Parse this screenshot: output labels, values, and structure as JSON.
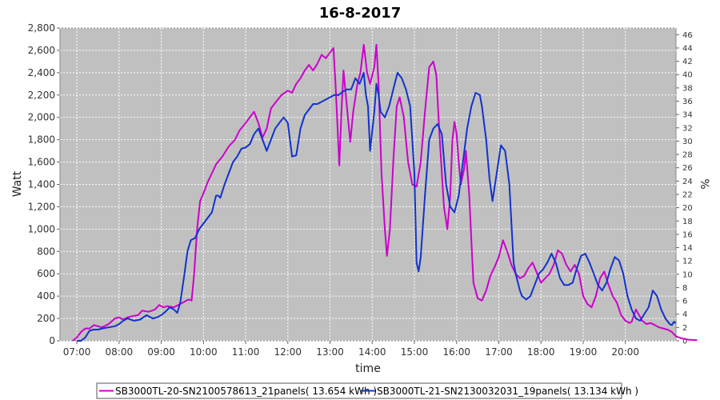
{
  "chart_data": {
    "type": "line",
    "title": "16-8-2017",
    "xlabel": "time",
    "ylabel": "Watt",
    "y2label": "%",
    "xlim": [
      6.6,
      21.2
    ],
    "ylim": [
      0,
      2800
    ],
    "y2lim": [
      0,
      47
    ],
    "x_ticks": [
      "07:00",
      "08:00",
      "09:00",
      "10:00",
      "11:00",
      "12:00",
      "13:00",
      "14:00",
      "15:00",
      "16:00",
      "17:00",
      "18:00",
      "19:00",
      "20:00"
    ],
    "y_ticks": [
      "0",
      "200",
      "400",
      "600",
      "800",
      "1,000",
      "1,200",
      "1,400",
      "1,600",
      "1,800",
      "2,000",
      "2,200",
      "2,400",
      "2,600",
      "2,800"
    ],
    "y2_ticks": [
      "0",
      "2",
      "4",
      "6",
      "8",
      "10",
      "12",
      "14",
      "16",
      "18",
      "20",
      "22",
      "24",
      "26",
      "28",
      "30",
      "32",
      "34",
      "36",
      "38",
      "40",
      "42",
      "44",
      "46"
    ],
    "grid": true,
    "legend_position": "bottom",
    "series": [
      {
        "name": "SB3000TL-20-SN2100578613_21panels( 13.654 kWh )",
        "color": "#cc00cc",
        "points": [
          [
            6.9,
            0
          ],
          [
            7.0,
            30
          ],
          [
            7.1,
            80
          ],
          [
            7.2,
            110
          ],
          [
            7.3,
            110
          ],
          [
            7.4,
            140
          ],
          [
            7.5,
            130
          ],
          [
            7.6,
            120
          ],
          [
            7.75,
            150
          ],
          [
            7.9,
            200
          ],
          [
            8.0,
            210
          ],
          [
            8.1,
            190
          ],
          [
            8.2,
            210
          ],
          [
            8.3,
            220
          ],
          [
            8.45,
            230
          ],
          [
            8.55,
            270
          ],
          [
            8.7,
            260
          ],
          [
            8.85,
            280
          ],
          [
            8.95,
            320
          ],
          [
            9.05,
            300
          ],
          [
            9.15,
            310
          ],
          [
            9.3,
            300
          ],
          [
            9.45,
            330
          ],
          [
            9.55,
            350
          ],
          [
            9.65,
            370
          ],
          [
            9.72,
            360
          ],
          [
            9.78,
            600
          ],
          [
            9.85,
            1000
          ],
          [
            9.92,
            1250
          ],
          [
            10.0,
            1320
          ],
          [
            10.1,
            1420
          ],
          [
            10.2,
            1500
          ],
          [
            10.3,
            1580
          ],
          [
            10.45,
            1650
          ],
          [
            10.6,
            1740
          ],
          [
            10.75,
            1800
          ],
          [
            10.85,
            1880
          ],
          [
            11.0,
            1950
          ],
          [
            11.1,
            2000
          ],
          [
            11.2,
            2050
          ],
          [
            11.3,
            1950
          ],
          [
            11.4,
            1820
          ],
          [
            11.5,
            1900
          ],
          [
            11.6,
            2080
          ],
          [
            11.7,
            2130
          ],
          [
            11.85,
            2200
          ],
          [
            12.0,
            2240
          ],
          [
            12.1,
            2220
          ],
          [
            12.2,
            2300
          ],
          [
            12.3,
            2350
          ],
          [
            12.4,
            2420
          ],
          [
            12.5,
            2470
          ],
          [
            12.6,
            2420
          ],
          [
            12.7,
            2480
          ],
          [
            12.8,
            2560
          ],
          [
            12.9,
            2530
          ],
          [
            13.0,
            2580
          ],
          [
            13.08,
            2620
          ],
          [
            13.13,
            2300
          ],
          [
            13.18,
            1900
          ],
          [
            13.22,
            1570
          ],
          [
            13.27,
            2050
          ],
          [
            13.32,
            2420
          ],
          [
            13.4,
            2100
          ],
          [
            13.48,
            1780
          ],
          [
            13.55,
            2050
          ],
          [
            13.65,
            2300
          ],
          [
            13.72,
            2400
          ],
          [
            13.8,
            2650
          ],
          [
            13.88,
            2400
          ],
          [
            13.95,
            2300
          ],
          [
            14.05,
            2450
          ],
          [
            14.1,
            2650
          ],
          [
            14.15,
            2300
          ],
          [
            14.22,
            1500
          ],
          [
            14.3,
            1000
          ],
          [
            14.35,
            760
          ],
          [
            14.42,
            1000
          ],
          [
            14.5,
            1600
          ],
          [
            14.58,
            2100
          ],
          [
            14.65,
            2180
          ],
          [
            14.75,
            2000
          ],
          [
            14.85,
            1600
          ],
          [
            14.95,
            1400
          ],
          [
            15.05,
            1380
          ],
          [
            15.15,
            1600
          ],
          [
            15.25,
            2050
          ],
          [
            15.35,
            2450
          ],
          [
            15.45,
            2500
          ],
          [
            15.52,
            2380
          ],
          [
            15.6,
            1800
          ],
          [
            15.7,
            1200
          ],
          [
            15.78,
            1000
          ],
          [
            15.85,
            1300
          ],
          [
            15.9,
            1800
          ],
          [
            15.95,
            1960
          ],
          [
            16.0,
            1850
          ],
          [
            16.05,
            1600
          ],
          [
            16.1,
            1400
          ],
          [
            16.18,
            1540
          ],
          [
            16.22,
            1700
          ],
          [
            16.3,
            1300
          ],
          [
            16.35,
            900
          ],
          [
            16.4,
            520
          ],
          [
            16.5,
            380
          ],
          [
            16.6,
            360
          ],
          [
            16.7,
            450
          ],
          [
            16.8,
            580
          ],
          [
            16.9,
            660
          ],
          [
            17.0,
            750
          ],
          [
            17.1,
            900
          ],
          [
            17.2,
            800
          ],
          [
            17.3,
            680
          ],
          [
            17.4,
            600
          ],
          [
            17.5,
            560
          ],
          [
            17.6,
            580
          ],
          [
            17.7,
            650
          ],
          [
            17.8,
            700
          ],
          [
            17.9,
            610
          ],
          [
            18.0,
            520
          ],
          [
            18.1,
            560
          ],
          [
            18.2,
            600
          ],
          [
            18.3,
            680
          ],
          [
            18.4,
            810
          ],
          [
            18.5,
            780
          ],
          [
            18.6,
            680
          ],
          [
            18.7,
            620
          ],
          [
            18.8,
            680
          ],
          [
            18.9,
            600
          ],
          [
            19.0,
            400
          ],
          [
            19.1,
            330
          ],
          [
            19.2,
            300
          ],
          [
            19.3,
            400
          ],
          [
            19.4,
            560
          ],
          [
            19.5,
            620
          ],
          [
            19.6,
            500
          ],
          [
            19.7,
            400
          ],
          [
            19.8,
            340
          ],
          [
            19.9,
            230
          ],
          [
            20.0,
            180
          ],
          [
            20.1,
            160
          ],
          [
            20.15,
            170
          ],
          [
            20.25,
            280
          ],
          [
            20.4,
            180
          ],
          [
            20.5,
            150
          ],
          [
            20.6,
            160
          ],
          [
            20.7,
            140
          ],
          [
            20.8,
            120
          ],
          [
            20.9,
            110
          ],
          [
            21.0,
            100
          ],
          [
            21.1,
            80
          ],
          [
            21.2,
            40
          ],
          [
            21.35,
            20
          ],
          [
            21.5,
            10
          ],
          [
            21.7,
            5
          ]
        ]
      },
      {
        "name": "SB3000TL-21-SN2130032031_19panels( 13.134 kWh )",
        "color": "#1133cc",
        "points": [
          [
            7.0,
            0
          ],
          [
            7.1,
            0
          ],
          [
            7.2,
            30
          ],
          [
            7.3,
            90
          ],
          [
            7.4,
            100
          ],
          [
            7.5,
            100
          ],
          [
            7.6,
            110
          ],
          [
            7.75,
            120
          ],
          [
            7.9,
            130
          ],
          [
            8.0,
            150
          ],
          [
            8.1,
            180
          ],
          [
            8.2,
            200
          ],
          [
            8.35,
            180
          ],
          [
            8.5,
            190
          ],
          [
            8.65,
            230
          ],
          [
            8.8,
            200
          ],
          [
            8.9,
            210
          ],
          [
            9.0,
            230
          ],
          [
            9.1,
            260
          ],
          [
            9.2,
            300
          ],
          [
            9.3,
            280
          ],
          [
            9.38,
            250
          ],
          [
            9.45,
            340
          ],
          [
            9.55,
            600
          ],
          [
            9.62,
            800
          ],
          [
            9.7,
            900
          ],
          [
            9.8,
            920
          ],
          [
            9.9,
            1000
          ],
          [
            10.0,
            1050
          ],
          [
            10.1,
            1100
          ],
          [
            10.2,
            1150
          ],
          [
            10.3,
            1300
          ],
          [
            10.35,
            1300
          ],
          [
            10.4,
            1280
          ],
          [
            10.5,
            1400
          ],
          [
            10.6,
            1500
          ],
          [
            10.7,
            1600
          ],
          [
            10.8,
            1650
          ],
          [
            10.9,
            1720
          ],
          [
            11.0,
            1730
          ],
          [
            11.1,
            1760
          ],
          [
            11.2,
            1850
          ],
          [
            11.3,
            1900
          ],
          [
            11.4,
            1800
          ],
          [
            11.5,
            1700
          ],
          [
            11.6,
            1800
          ],
          [
            11.7,
            1900
          ],
          [
            11.8,
            1950
          ],
          [
            11.9,
            2000
          ],
          [
            12.0,
            1950
          ],
          [
            12.1,
            1650
          ],
          [
            12.2,
            1660
          ],
          [
            12.3,
            1900
          ],
          [
            12.4,
            2020
          ],
          [
            12.5,
            2070
          ],
          [
            12.6,
            2120
          ],
          [
            12.7,
            2120
          ],
          [
            12.8,
            2140
          ],
          [
            12.9,
            2160
          ],
          [
            13.0,
            2180
          ],
          [
            13.1,
            2200
          ],
          [
            13.2,
            2200
          ],
          [
            13.3,
            2230
          ],
          [
            13.4,
            2250
          ],
          [
            13.5,
            2250
          ],
          [
            13.6,
            2350
          ],
          [
            13.7,
            2300
          ],
          [
            13.8,
            2400
          ],
          [
            13.85,
            2200
          ],
          [
            13.9,
            2100
          ],
          [
            13.95,
            1700
          ],
          [
            14.05,
            2050
          ],
          [
            14.1,
            2300
          ],
          [
            14.15,
            2200
          ],
          [
            14.2,
            2050
          ],
          [
            14.3,
            2000
          ],
          [
            14.4,
            2100
          ],
          [
            14.5,
            2250
          ],
          [
            14.6,
            2400
          ],
          [
            14.7,
            2350
          ],
          [
            14.8,
            2250
          ],
          [
            14.9,
            2100
          ],
          [
            15.0,
            1500
          ],
          [
            15.05,
            700
          ],
          [
            15.1,
            620
          ],
          [
            15.15,
            750
          ],
          [
            15.25,
            1300
          ],
          [
            15.35,
            1800
          ],
          [
            15.45,
            1900
          ],
          [
            15.55,
            1940
          ],
          [
            15.65,
            1850
          ],
          [
            15.75,
            1400
          ],
          [
            15.85,
            1200
          ],
          [
            15.95,
            1150
          ],
          [
            16.05,
            1300
          ],
          [
            16.15,
            1600
          ],
          [
            16.25,
            1900
          ],
          [
            16.35,
            2100
          ],
          [
            16.45,
            2220
          ],
          [
            16.55,
            2200
          ],
          [
            16.6,
            2100
          ],
          [
            16.7,
            1800
          ],
          [
            16.78,
            1450
          ],
          [
            16.85,
            1250
          ],
          [
            16.95,
            1500
          ],
          [
            17.05,
            1750
          ],
          [
            17.15,
            1700
          ],
          [
            17.25,
            1400
          ],
          [
            17.3,
            1050
          ],
          [
            17.35,
            700
          ],
          [
            17.4,
            600
          ],
          [
            17.5,
            450
          ],
          [
            17.55,
            400
          ],
          [
            17.65,
            370
          ],
          [
            17.75,
            400
          ],
          [
            17.85,
            500
          ],
          [
            17.95,
            600
          ],
          [
            18.05,
            640
          ],
          [
            18.15,
            700
          ],
          [
            18.25,
            780
          ],
          [
            18.35,
            700
          ],
          [
            18.45,
            560
          ],
          [
            18.55,
            500
          ],
          [
            18.65,
            500
          ],
          [
            18.75,
            520
          ],
          [
            18.85,
            650
          ],
          [
            18.95,
            760
          ],
          [
            19.05,
            780
          ],
          [
            19.15,
            700
          ],
          [
            19.25,
            600
          ],
          [
            19.35,
            500
          ],
          [
            19.45,
            450
          ],
          [
            19.55,
            520
          ],
          [
            19.65,
            650
          ],
          [
            19.75,
            750
          ],
          [
            19.85,
            720
          ],
          [
            19.95,
            600
          ],
          [
            20.05,
            400
          ],
          [
            20.15,
            280
          ],
          [
            20.25,
            200
          ],
          [
            20.35,
            180
          ],
          [
            20.45,
            240
          ],
          [
            20.55,
            300
          ],
          [
            20.65,
            450
          ],
          [
            20.75,
            400
          ],
          [
            20.85,
            280
          ],
          [
            20.95,
            200
          ],
          [
            21.05,
            150
          ],
          [
            21.1,
            140
          ],
          [
            21.15,
            170
          ],
          [
            21.2,
            160
          ]
        ]
      }
    ]
  }
}
